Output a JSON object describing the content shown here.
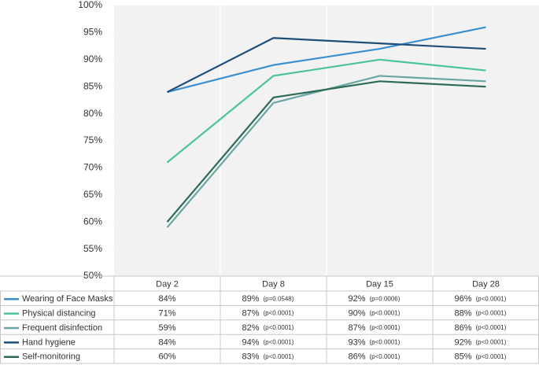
{
  "chart_data": {
    "type": "line",
    "categories": [
      "Day 2",
      "Day 8",
      "Day 15",
      "Day 28"
    ],
    "ylim": [
      50,
      100
    ],
    "yticks": [
      {
        "value": 50,
        "label": "50%"
      },
      {
        "value": 55,
        "label": "55%"
      },
      {
        "value": 60,
        "label": "60%"
      },
      {
        "value": 65,
        "label": "65%"
      },
      {
        "value": 70,
        "label": "70%"
      },
      {
        "value": 75,
        "label": "75%"
      },
      {
        "value": 80,
        "label": "80%"
      },
      {
        "value": 85,
        "label": "85%"
      },
      {
        "value": 90,
        "label": "90%"
      },
      {
        "value": 95,
        "label": "95%"
      },
      {
        "value": 100,
        "label": "100%"
      }
    ],
    "series": [
      {
        "name": "Wearing of Face Masks",
        "color": "#3a8fd0",
        "values": [
          84,
          89,
          92,
          96
        ],
        "value_labels": [
          "84%",
          "89%",
          "92%",
          "96%"
        ],
        "p_values": [
          null,
          "(p=0.0548)",
          "(p=0.0006)",
          "(p<0.0001)"
        ]
      },
      {
        "name": "Physical distancing",
        "color": "#4cc49a",
        "values": [
          71,
          87,
          90,
          88
        ],
        "value_labels": [
          "71%",
          "87%",
          "90%",
          "88%"
        ],
        "p_values": [
          null,
          "(p<0.0001)",
          "(p<0.0001)",
          "(p<0.0001)"
        ]
      },
      {
        "name": "Frequent disinfection",
        "color": "#6aa6a3",
        "values": [
          59,
          82,
          87,
          86
        ],
        "value_labels": [
          "59%",
          "82%",
          "87%",
          "86%"
        ],
        "p_values": [
          null,
          "(p<0.0001)",
          "(p<0.0001)",
          "(p<0.0001)"
        ]
      },
      {
        "name": "Hand hygiene",
        "color": "#1f4e79",
        "values": [
          84,
          94,
          93,
          92
        ],
        "value_labels": [
          "84%",
          "94%",
          "93%",
          "92%"
        ],
        "p_values": [
          null,
          "(p<0.0001)",
          "(p<0.0001)",
          "(p<0.0001)"
        ]
      },
      {
        "name": "Self-monitoring",
        "color": "#2e6b55",
        "values": [
          60,
          83,
          86,
          85
        ],
        "value_labels": [
          "60%",
          "83%",
          "86%",
          "85%"
        ],
        "p_values": [
          null,
          "(p<0.0001)",
          "(p<0.0001)",
          "(p<0.0001)"
        ]
      }
    ]
  }
}
